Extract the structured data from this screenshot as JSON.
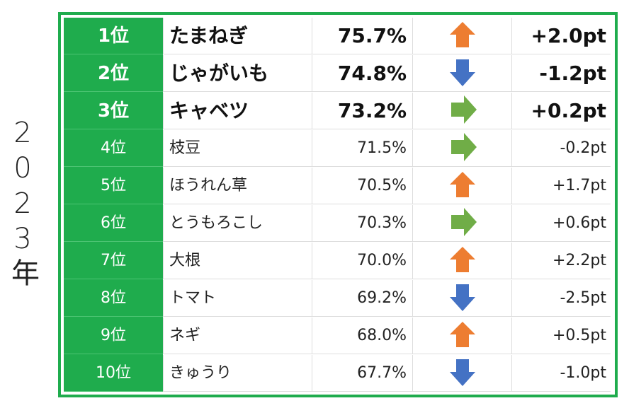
{
  "side_label": "2023年",
  "table": {
    "rows": [
      {
        "rank": "1位",
        "name": "たまねぎ",
        "rate": "75.7%",
        "trend": "up",
        "change": "+2.0pt"
      },
      {
        "rank": "2位",
        "name": "じゃがいも",
        "rate": "74.8%",
        "trend": "down",
        "change": "-1.2pt"
      },
      {
        "rank": "3位",
        "name": "キャベツ",
        "rate": "73.2%",
        "trend": "flat",
        "change": "+0.2pt"
      },
      {
        "rank": "4位",
        "name": "枝豆",
        "rate": "71.5%",
        "trend": "flat",
        "change": "-0.2pt"
      },
      {
        "rank": "5位",
        "name": "ほうれん草",
        "rate": "70.5%",
        "trend": "up",
        "change": "+1.7pt"
      },
      {
        "rank": "6位",
        "name": "とうもろこし",
        "rate": "70.3%",
        "trend": "flat",
        "change": "+0.6pt"
      },
      {
        "rank": "7位",
        "name": "大根",
        "rate": "70.0%",
        "trend": "up",
        "change": "+2.2pt"
      },
      {
        "rank": "8位",
        "name": "トマト",
        "rate": "69.2%",
        "trend": "down",
        "change": "-2.5pt"
      },
      {
        "rank": "9位",
        "name": "ネギ",
        "rate": "68.0%",
        "trend": "up",
        "change": "+0.5pt"
      },
      {
        "rank": "10位",
        "name": "きゅうり",
        "rate": "67.7%",
        "trend": "down",
        "change": "-1.0pt"
      }
    ]
  },
  "trend_colors": {
    "up": "#ed7d31",
    "down": "#4472c4",
    "flat": "#70ad47"
  }
}
